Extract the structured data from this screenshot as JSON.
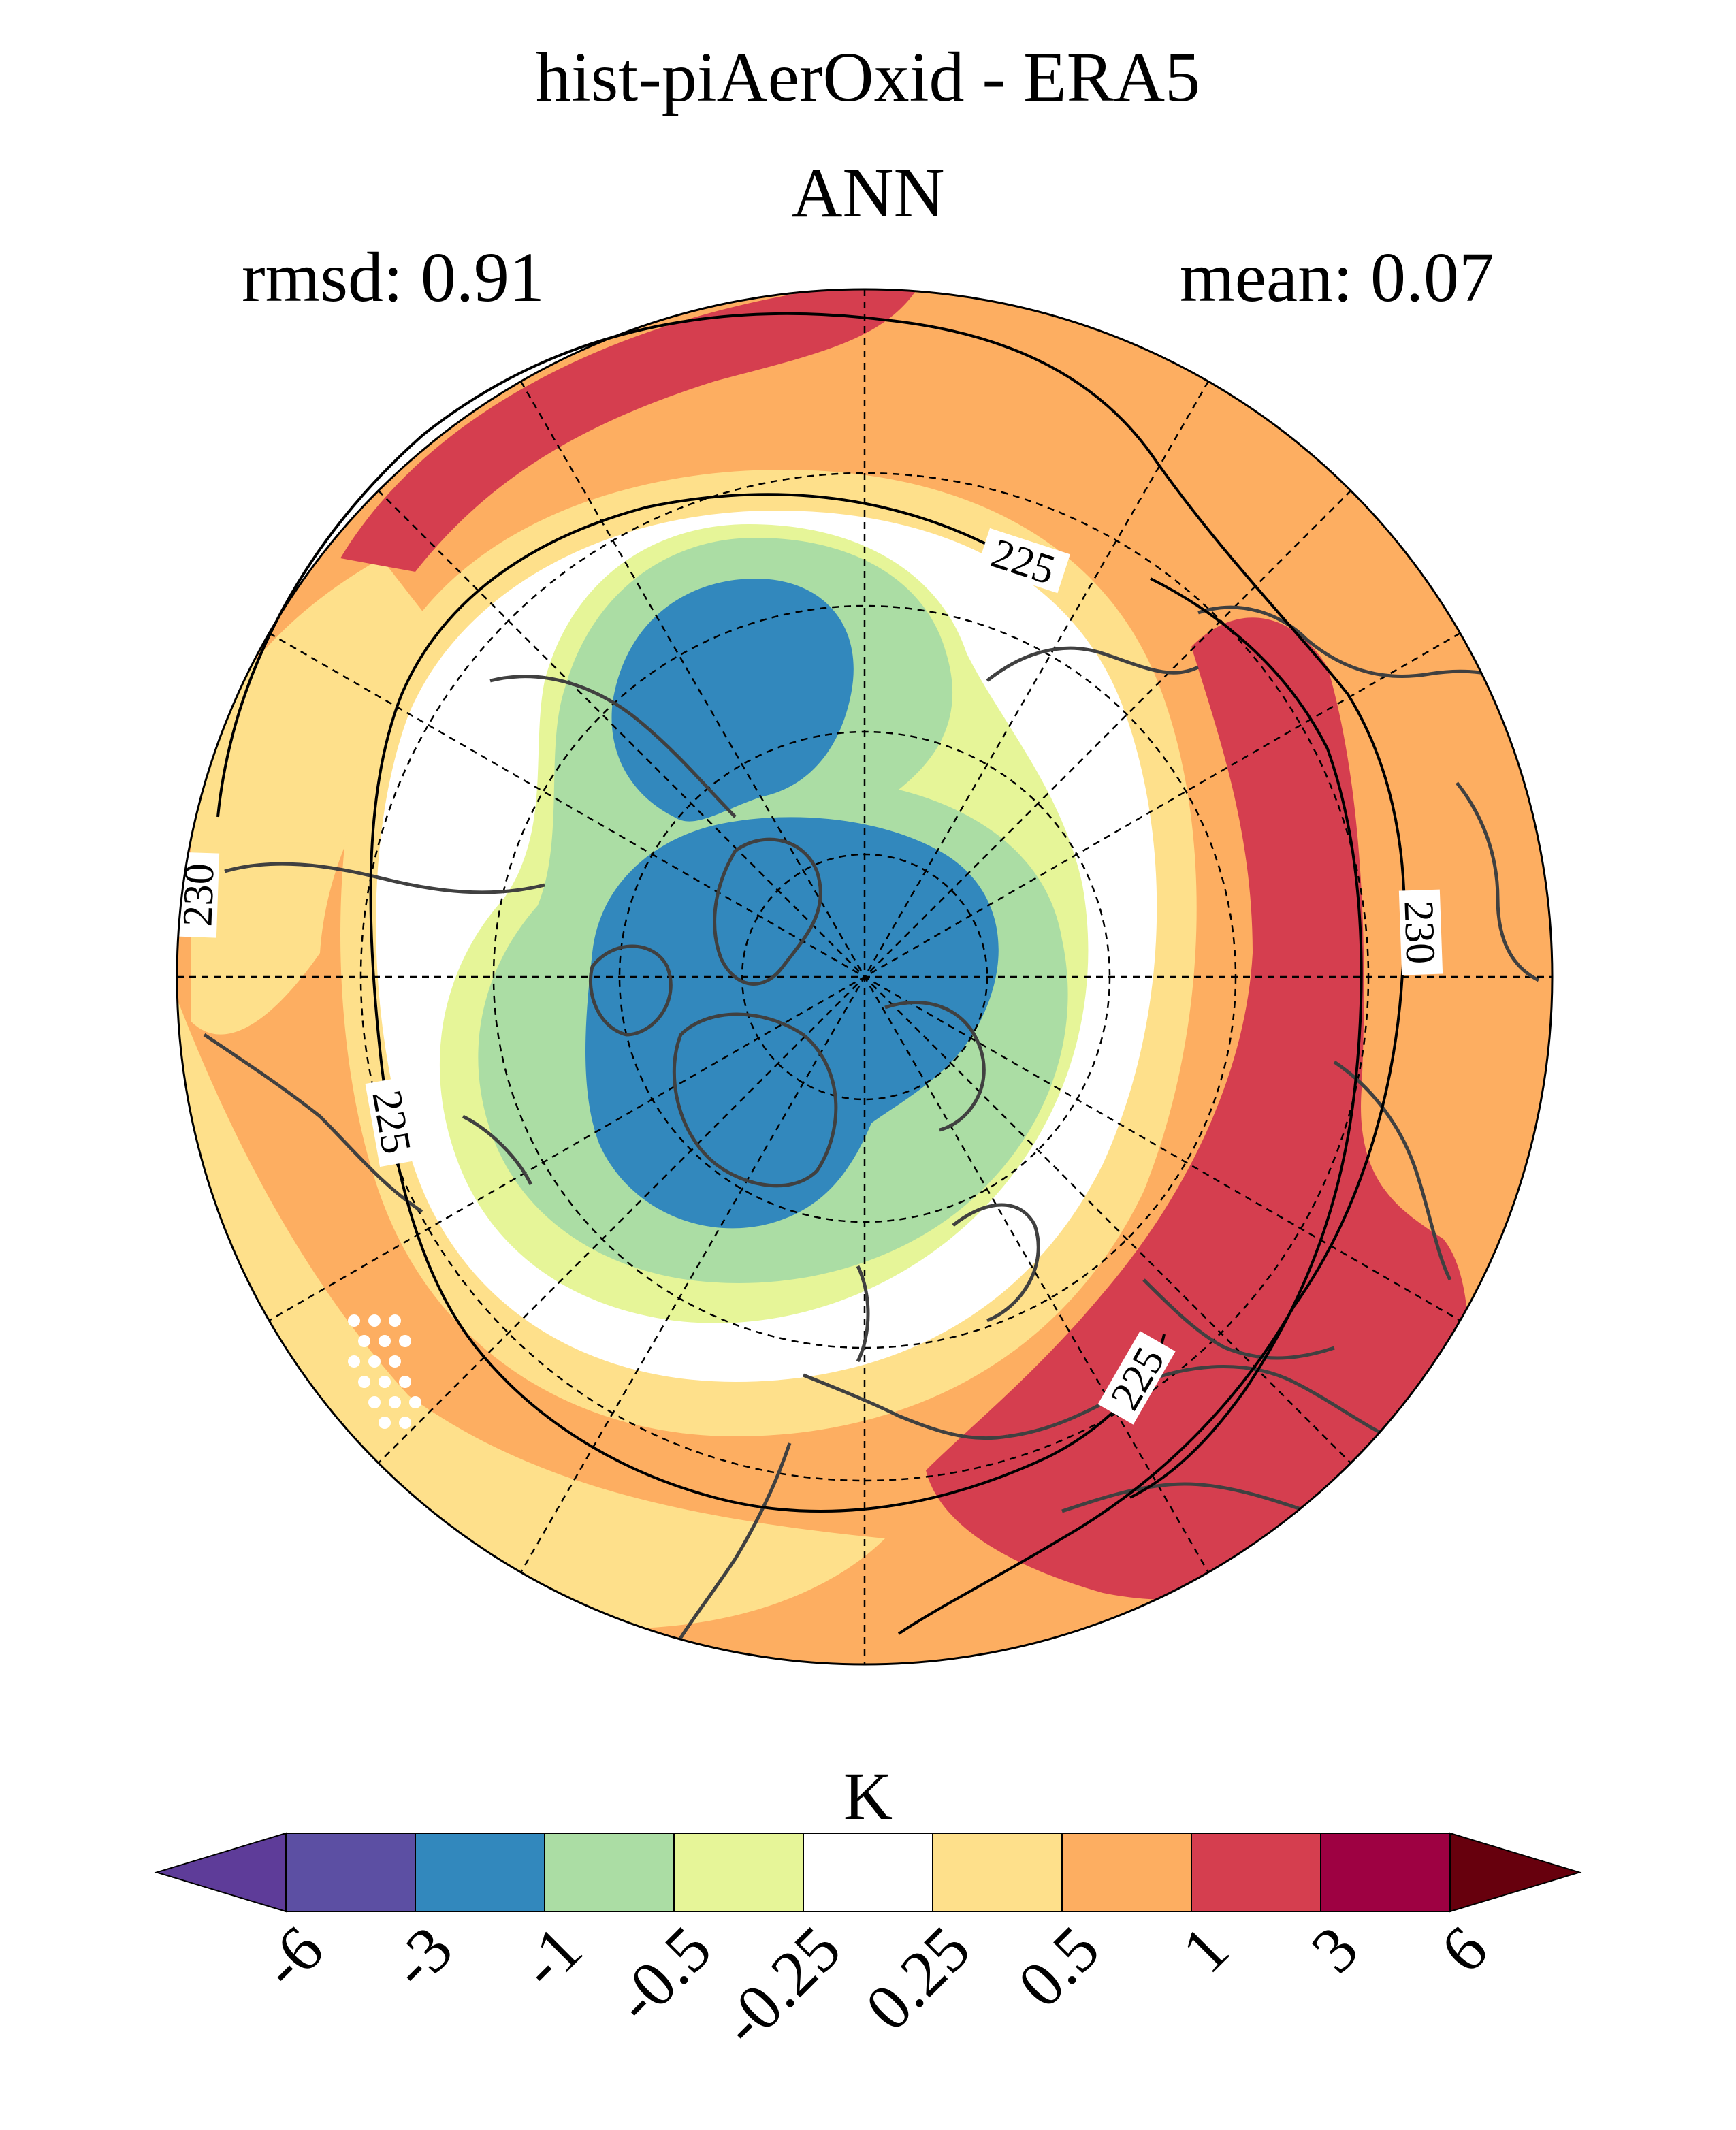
{
  "title": "hist-piAerOxid - ERA5",
  "subtitle": "ANN",
  "stats": {
    "rmsd_label": "rmsd: 0.91",
    "mean_label": "mean: 0.07"
  },
  "map": {
    "projection": "polar stereographic, north pole",
    "contours": [
      {
        "value": 225,
        "label": "225"
      },
      {
        "value": 230,
        "label": "230"
      }
    ],
    "contour_labels": [
      "225",
      "230",
      "230",
      "225",
      "225"
    ]
  },
  "colorbar": {
    "unit": "K",
    "ticks": [
      "-6",
      "-3",
      "-1",
      "-0.5",
      "-0.25",
      "0.25",
      "0.5",
      "1",
      "3",
      "6"
    ],
    "colors": [
      "#5e3c99",
      "#5c4fa3",
      "#3288bd",
      "#abdda4",
      "#e6f598",
      "#ffffff",
      "#fee08b",
      "#fdae61",
      "#d53e4f",
      "#9e0142",
      "#67000d"
    ]
  }
}
